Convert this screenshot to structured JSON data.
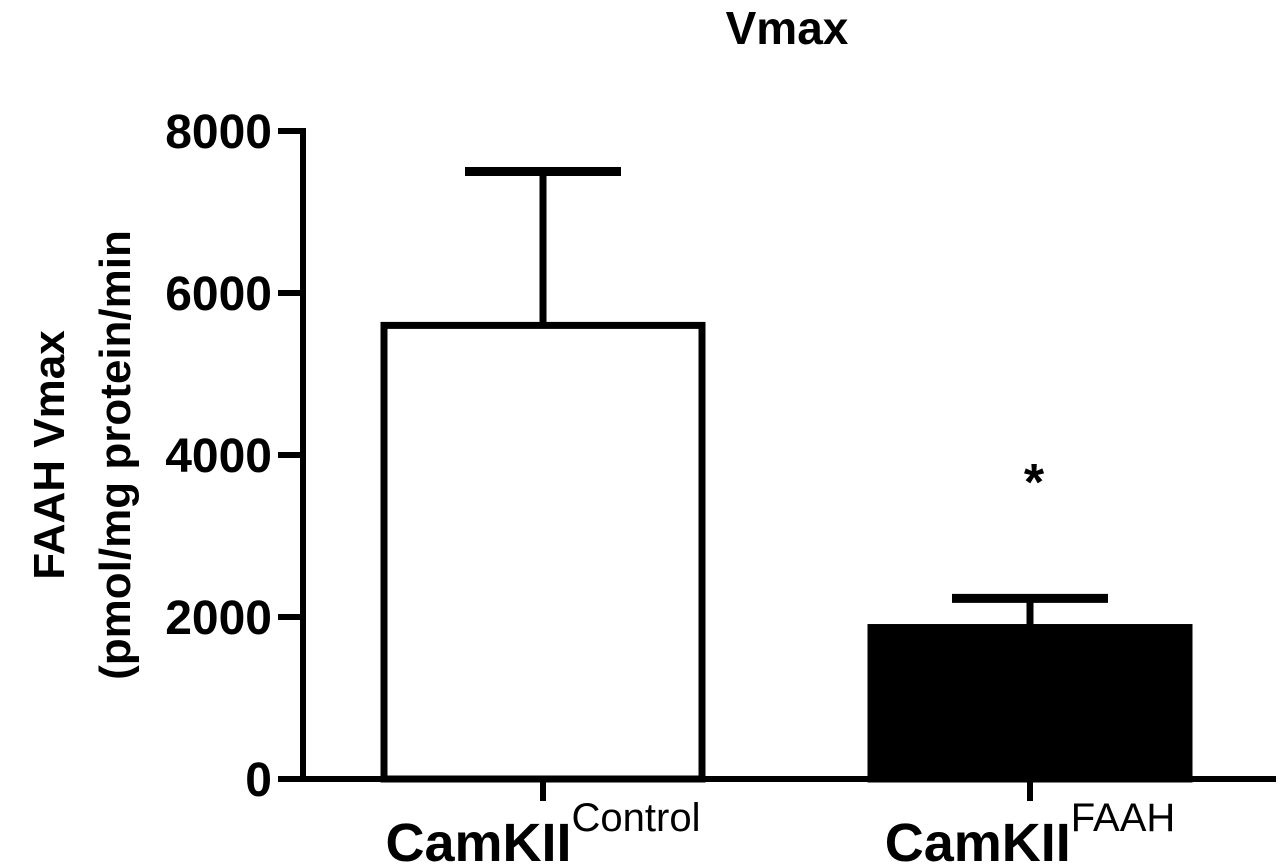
{
  "chart_data": {
    "type": "bar",
    "title": "Vmax",
    "ylabel_line1": "FAAH Vmax",
    "ylabel_line2": "(pmol/mg protein/min",
    "xlabel": "",
    "ylim": [
      0,
      8000
    ],
    "yticks": [
      0,
      2000,
      4000,
      6000,
      8000
    ],
    "categories": [
      {
        "base": "CamKII",
        "sup": "Control"
      },
      {
        "base": "CamKII",
        "sup": "FAAH"
      }
    ],
    "values": [
      5600,
      1870
    ],
    "error_upper": [
      7500,
      2230
    ],
    "bar_fill": [
      "#ffffff",
      "#000000"
    ],
    "bar_stroke": "#000000",
    "annotations": [
      "",
      "*"
    ],
    "grid": false,
    "legend": "none"
  }
}
